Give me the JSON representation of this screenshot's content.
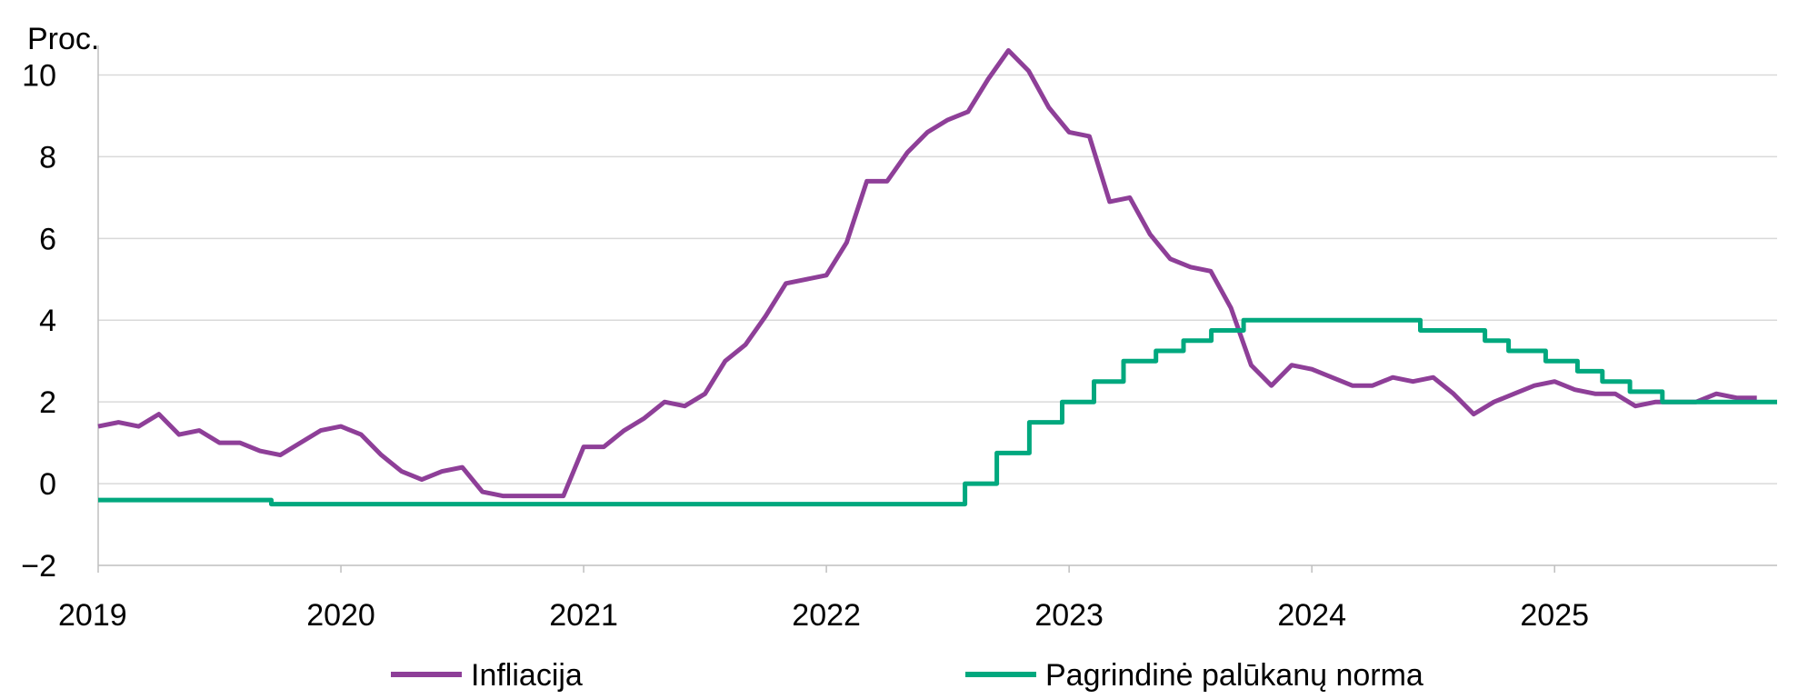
{
  "chart_data": {
    "type": "line",
    "ylabel": "Proc.",
    "ylim": [
      -2,
      10.5
    ],
    "yticks": [
      -2,
      0,
      2,
      4,
      6,
      8,
      10
    ],
    "ytick_labels": [
      "−2",
      "0",
      "2",
      "4",
      "6",
      "8",
      "10"
    ],
    "xlim": [
      "2019-01",
      "2025-12"
    ],
    "xticks": [
      "2019",
      "2020",
      "2021",
      "2022",
      "2023",
      "2024",
      "2025"
    ],
    "grid": "horizontal",
    "legend_position": "bottom",
    "series": [
      {
        "name": "Infliacija",
        "color": "#8E3F98",
        "step": false,
        "points": [
          [
            "2019-01",
            1.4
          ],
          [
            "2019-02",
            1.5
          ],
          [
            "2019-03",
            1.4
          ],
          [
            "2019-04",
            1.7
          ],
          [
            "2019-05",
            1.2
          ],
          [
            "2019-06",
            1.3
          ],
          [
            "2019-07",
            1.0
          ],
          [
            "2019-08",
            1.0
          ],
          [
            "2019-09",
            0.8
          ],
          [
            "2019-10",
            0.7
          ],
          [
            "2019-11",
            1.0
          ],
          [
            "2019-12",
            1.3
          ],
          [
            "2020-01",
            1.4
          ],
          [
            "2020-02",
            1.2
          ],
          [
            "2020-03",
            0.7
          ],
          [
            "2020-04",
            0.3
          ],
          [
            "2020-05",
            0.1
          ],
          [
            "2020-06",
            0.3
          ],
          [
            "2020-07",
            0.4
          ],
          [
            "2020-08",
            -0.2
          ],
          [
            "2020-09",
            -0.3
          ],
          [
            "2020-10",
            -0.3
          ],
          [
            "2020-11",
            -0.3
          ],
          [
            "2020-12",
            -0.3
          ],
          [
            "2021-01",
            0.9
          ],
          [
            "2021-02",
            0.9
          ],
          [
            "2021-03",
            1.3
          ],
          [
            "2021-04",
            1.6
          ],
          [
            "2021-05",
            2.0
          ],
          [
            "2021-06",
            1.9
          ],
          [
            "2021-07",
            2.2
          ],
          [
            "2021-08",
            3.0
          ],
          [
            "2021-09",
            3.4
          ],
          [
            "2021-10",
            4.1
          ],
          [
            "2021-11",
            4.9
          ],
          [
            "2021-12",
            5.0
          ],
          [
            "2022-01",
            5.1
          ],
          [
            "2022-02",
            5.9
          ],
          [
            "2022-03",
            7.4
          ],
          [
            "2022-04",
            7.4
          ],
          [
            "2022-05",
            8.1
          ],
          [
            "2022-06",
            8.6
          ],
          [
            "2022-07",
            8.9
          ],
          [
            "2022-08",
            9.1
          ],
          [
            "2022-09",
            9.9
          ],
          [
            "2022-10",
            10.6
          ],
          [
            "2022-11",
            10.1
          ],
          [
            "2022-12",
            9.2
          ],
          [
            "2023-01",
            8.6
          ],
          [
            "2023-02",
            8.5
          ],
          [
            "2023-03",
            6.9
          ],
          [
            "2023-04",
            7.0
          ],
          [
            "2023-05",
            6.1
          ],
          [
            "2023-06",
            5.5
          ],
          [
            "2023-07",
            5.3
          ],
          [
            "2023-08",
            5.2
          ],
          [
            "2023-09",
            4.3
          ],
          [
            "2023-10",
            2.9
          ],
          [
            "2023-11",
            2.4
          ],
          [
            "2023-12",
            2.9
          ],
          [
            "2024-01",
            2.8
          ],
          [
            "2024-02",
            2.6
          ],
          [
            "2024-03",
            2.4
          ],
          [
            "2024-04",
            2.4
          ],
          [
            "2024-05",
            2.6
          ],
          [
            "2024-06",
            2.5
          ],
          [
            "2024-07",
            2.6
          ],
          [
            "2024-08",
            2.2
          ],
          [
            "2024-09",
            1.7
          ],
          [
            "2024-10",
            2.0
          ],
          [
            "2024-11",
            2.2
          ],
          [
            "2024-12",
            2.4
          ],
          [
            "2025-01",
            2.5
          ],
          [
            "2025-02",
            2.3
          ],
          [
            "2025-03",
            2.2
          ],
          [
            "2025-04",
            2.2
          ],
          [
            "2025-05",
            1.9
          ],
          [
            "2025-06",
            2.0
          ],
          [
            "2025-07",
            2.0
          ],
          [
            "2025-08",
            2.0
          ],
          [
            "2025-09",
            2.2
          ],
          [
            "2025-10",
            2.1
          ],
          [
            "2025-11",
            2.1
          ]
        ]
      },
      {
        "name": "Pagrindinė palūkanų norma",
        "color": "#00A87E",
        "step": true,
        "points": [
          [
            "2019-01",
            -0.4
          ],
          [
            "2019-09-18",
            -0.5
          ],
          [
            "2022-07-27",
            0.0
          ],
          [
            "2022-09-14",
            0.75
          ],
          [
            "2022-11-02",
            1.5
          ],
          [
            "2022-12-21",
            2.0
          ],
          [
            "2023-02-08",
            2.5
          ],
          [
            "2023-03-22",
            3.0
          ],
          [
            "2023-05-10",
            3.25
          ],
          [
            "2023-06-21",
            3.5
          ],
          [
            "2023-08-02",
            3.75
          ],
          [
            "2023-09-20",
            4.0
          ],
          [
            "2024-06-12",
            3.75
          ],
          [
            "2024-09-18",
            3.5
          ],
          [
            "2024-10-23",
            3.25
          ],
          [
            "2024-12-18",
            3.0
          ],
          [
            "2025-02-05",
            2.75
          ],
          [
            "2025-03-12",
            2.5
          ],
          [
            "2025-04-23",
            2.25
          ],
          [
            "2025-06-11",
            2.0
          ],
          [
            "2025-12",
            2.0
          ]
        ]
      }
    ]
  }
}
